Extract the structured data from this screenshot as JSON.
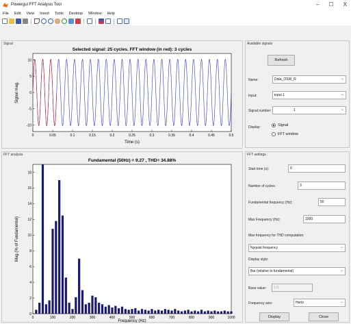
{
  "window": {
    "title": "Powergui FFT Analysis Tool",
    "controls": {
      "minimize": "–",
      "maximize": "☐",
      "close": "X"
    }
  },
  "menu": [
    "File",
    "Edit",
    "View",
    "Insert",
    "Tools",
    "Desktop",
    "Window",
    "Help"
  ],
  "toolbar_icons": [
    "new-file-icon",
    "open-file-icon",
    "save-icon",
    "print-icon",
    "pointer-icon",
    "zoom-in-icon",
    "zoom-out-icon",
    "pan-icon",
    "rotate-icon",
    "data-cursor-icon",
    "brush-icon",
    "link-icon",
    "colorbar-icon",
    "legend-icon",
    "hide-plot-tools-icon",
    "show-plot-tools-icon"
  ],
  "signal_panel": {
    "title": "Signal",
    "chart_title": "Selected signal: 25 cycles. FFT window (in red): 3 cycles",
    "xlabel": "Time (s)",
    "ylabel": "Signal mag.",
    "xticks": [
      "0",
      "0.05",
      "0.1",
      "0.15",
      "0.2",
      "0.25",
      "0.3",
      "0.35",
      "0.4",
      "0.45",
      "0.5"
    ],
    "yticks": [
      "10",
      "5",
      "0",
      "-5",
      "-10"
    ]
  },
  "fft_panel": {
    "title": "FFT analysis",
    "chart_title": "Fundamental (50Hz) = 9.27 , THD= 34.88%",
    "xlabel": "Frequency (Hz)",
    "ylabel": "Mag (% of Fundamental)",
    "xticks": [
      "0",
      "100",
      "200",
      "300",
      "400",
      "500",
      "600",
      "700",
      "800",
      "900",
      "1000"
    ],
    "yticks": [
      "18",
      "16",
      "14",
      "12",
      "10",
      "8",
      "6",
      "4",
      "2",
      "0"
    ]
  },
  "available_signals": {
    "title": "Available signals",
    "refresh_label": "Refresh",
    "name_label": "Name:",
    "name_value": "Data_OSW_R",
    "input_label": "Input:",
    "input_value": "input 1",
    "signal_number_label": "Signal number:",
    "signal_number_value": "1",
    "display_label": "Display:",
    "display_options": [
      "Signal",
      "FFT window"
    ],
    "display_selected": "Signal"
  },
  "fft_settings": {
    "title": "FFT settings",
    "start_time_label": "Start time (s):",
    "start_time_value": "0",
    "cycles_label": "Number of cycles:",
    "cycles_value": "3",
    "fund_freq_label": "Fundamental frequency (Hz):",
    "fund_freq_value": "50",
    "max_freq_label": "Max Frequency (Hz):",
    "max_freq_value": "1000",
    "thd_label": "Max frequency for THD computation:",
    "thd_value": "Nyquist frequency",
    "display_style_label": "Display style:",
    "display_style_value": "Bar (relative to fundamental)",
    "base_value_label": "Base value:",
    "base_value_value": "1.0",
    "freq_axis_label": "Frequency axis:",
    "freq_axis_value": "Hertz",
    "display_button": "Display",
    "close_button": "Close"
  },
  "chart_data": [
    {
      "type": "line",
      "title": "Selected signal: 25 cycles. FFT window (in red): 3 cycles",
      "xlabel": "Time (s)",
      "ylabel": "Signal mag.",
      "xlim": [
        0,
        0.5
      ],
      "ylim": [
        -12,
        12
      ],
      "series": [
        {
          "name": "",
          "color": "#3333cc",
          "frequency_hz": 50,
          "amplitude": 10.2,
          "t_start": 0,
          "t_end": 0.5
        },
        {
          "name": "",
          "color": "#dd2222",
          "frequency_hz": 50,
          "amplitude": 10.2,
          "t_start": 0,
          "t_end": 0.06
        }
      ],
      "grid": false
    },
    {
      "type": "bar",
      "title": "Fundamental (50Hz) = 9.27 , THD= 34.88%",
      "xlabel": "Frequency (Hz)",
      "ylabel": "Mag (% of Fundamental)",
      "xlim": [
        0,
        1000
      ],
      "ylim": [
        0,
        19
      ],
      "color": "#1a1a6e",
      "x": [
        16.7,
        33.3,
        50,
        66.7,
        83.3,
        100,
        116.7,
        133.3,
        150,
        166.7,
        183.3,
        200,
        216.7,
        233.3,
        250,
        266.7,
        283.3,
        300,
        316.7,
        333.3,
        350,
        366.7,
        383.3,
        400,
        416.7,
        433.3,
        450,
        466.7,
        483.3,
        500,
        516.7,
        533.3,
        550,
        566.7,
        583.3,
        600,
        616.7,
        633.3,
        650,
        666.7,
        683.3,
        700,
        716.7,
        733.3,
        750,
        766.7,
        783.3,
        800,
        816.7,
        833.3,
        850,
        866.7,
        883.3,
        900,
        916.7,
        933.3,
        950,
        966.7,
        983.3,
        1000
      ],
      "values": [
        0.5,
        1.4,
        19.0,
        1.2,
        1.7,
        10.8,
        11.8,
        17.0,
        12.5,
        4.6,
        1.4,
        0.6,
        2.1,
        7.0,
        3.0,
        1.2,
        1.4,
        2.3,
        2.1,
        1.4,
        1.2,
        0.9,
        1.1,
        0.8,
        1.0,
        0.7,
        0.9,
        0.6,
        0.5,
        0.6,
        0.7,
        0.4,
        0.6,
        0.5,
        0.4,
        0.6,
        0.4,
        0.5,
        0.4,
        0.6,
        0.5,
        0.4,
        0.6,
        0.4,
        0.3,
        0.4,
        0.5,
        0.3,
        0.4,
        0.3,
        0.5,
        0.3,
        0.4,
        0.3,
        0.4,
        0.3,
        0.3,
        0.4,
        0.3,
        0.3
      ],
      "grid": false
    }
  ]
}
